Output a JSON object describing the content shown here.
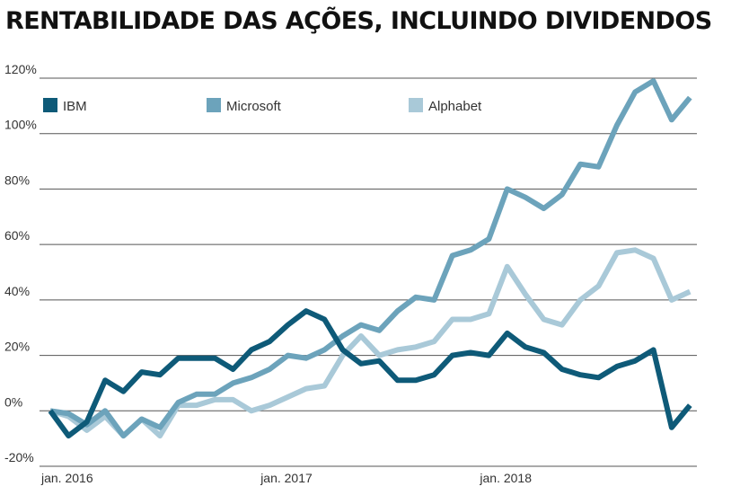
{
  "chart_data": {
    "type": "line",
    "title": "RENTABILIDADE DAS AÇÕES, INCLUINDO DIVIDENDOS",
    "xlabel": "",
    "ylabel": "",
    "x_tick_labels": [
      "jan. 2016",
      "jan. 2017",
      "jan. 2018"
    ],
    "y_tick_labels": [
      "-20%",
      "0%",
      "20%",
      "40%",
      "60%",
      "80%",
      "100%",
      "120%"
    ],
    "ylim": [
      -20,
      120
    ],
    "grid": true,
    "legend_position": "top",
    "series": [
      {
        "name": "IBM",
        "color": "#0e5a78",
        "values": [
          0,
          -9,
          -4,
          11,
          7,
          14,
          13,
          19,
          19,
          19,
          15,
          22,
          25,
          31,
          36,
          33,
          22,
          17,
          18,
          11,
          11,
          13,
          20,
          21,
          20,
          28,
          23,
          21,
          15,
          13,
          12,
          16,
          18,
          22,
          -6,
          2
        ]
      },
      {
        "name": "Microsoft",
        "color": "#6ca3bb",
        "values": [
          0,
          -1,
          -5,
          0,
          -9,
          -3,
          -6,
          3,
          6,
          6,
          10,
          12,
          15,
          20,
          19,
          22,
          27,
          31,
          29,
          36,
          41,
          40,
          56,
          58,
          62,
          80,
          77,
          73,
          78,
          89,
          88,
          103,
          115,
          119,
          105,
          113
        ]
      },
      {
        "name": "Alphabet",
        "color": "#a9c9d8",
        "values": [
          0,
          -2,
          -7,
          -2,
          -9,
          -3,
          -9,
          2,
          2,
          4,
          4,
          0,
          2,
          5,
          8,
          9,
          20,
          27,
          20,
          22,
          23,
          25,
          33,
          33,
          35,
          52,
          42,
          33,
          31,
          40,
          45,
          57,
          58,
          55,
          40,
          43
        ]
      }
    ]
  }
}
